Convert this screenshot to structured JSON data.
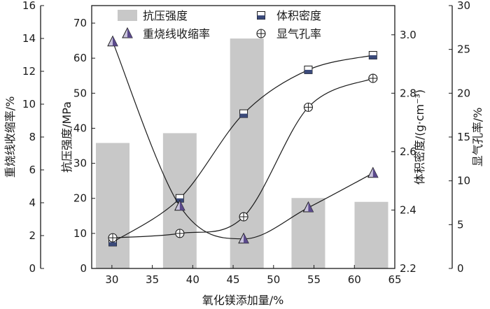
{
  "chart_data": {
    "type": "bar",
    "xlabel": "氧化镁添加量/%",
    "x_ticks": [
      30,
      35,
      40,
      45,
      50,
      55,
      60,
      65
    ],
    "xlim": [
      27.5,
      65
    ],
    "axes": {
      "shrink": {
        "label": "重烧线收缩率/%",
        "lim": [
          0,
          16
        ],
        "ticks": [
          0,
          2,
          4,
          6,
          8,
          10,
          12,
          14,
          16
        ]
      },
      "strength": {
        "label": "抗压强度/MPa",
        "lim": [
          0,
          75
        ],
        "ticks": [
          0,
          10,
          20,
          30,
          40,
          50,
          60,
          70
        ]
      },
      "density": {
        "label": "体积密度/(g·cm⁻³)",
        "lim": [
          2.2,
          3.1
        ],
        "ticks": [
          2.2,
          2.4,
          2.6,
          2.8,
          3.0
        ]
      },
      "porosity": {
        "label": "显气孔率/%",
        "lim": [
          0,
          30
        ],
        "ticks": [
          0,
          5,
          10,
          15,
          20,
          25,
          30
        ]
      }
    },
    "series": [
      {
        "name": "抗压强度",
        "kind": "bar",
        "axis": "strength",
        "color": "#c8c8c8",
        "x": [
          30.1,
          38.4,
          46.7,
          54.3,
          62.1
        ],
        "values": [
          35.8,
          38.6,
          65.6,
          20.1,
          19.0
        ]
      },
      {
        "name": "体积密度",
        "kind": "line",
        "axis": "density",
        "marker": "square",
        "color": "#3b4a7a",
        "x": [
          30.1,
          38.4,
          46.3,
          54.3,
          62.3
        ],
        "values": [
          2.29,
          2.44,
          2.73,
          2.88,
          2.93
        ]
      },
      {
        "name": "重烧线收缩率",
        "kind": "line",
        "axis": "shrink",
        "marker": "triangle",
        "color": "#5b4a8c",
        "x": [
          30.1,
          38.4,
          46.3,
          54.3,
          62.3
        ],
        "values": [
          13.8,
          3.8,
          1.8,
          3.7,
          5.8
        ]
      },
      {
        "name": "显气孔率",
        "kind": "line",
        "axis": "porosity",
        "marker": "circle-plus",
        "color": "#1a1a1a",
        "x": [
          30.1,
          38.4,
          46.3,
          54.3,
          62.3
        ],
        "values": [
          3.5,
          4.0,
          5.9,
          18.4,
          21.7
        ]
      }
    ],
    "legend_position": "top"
  }
}
